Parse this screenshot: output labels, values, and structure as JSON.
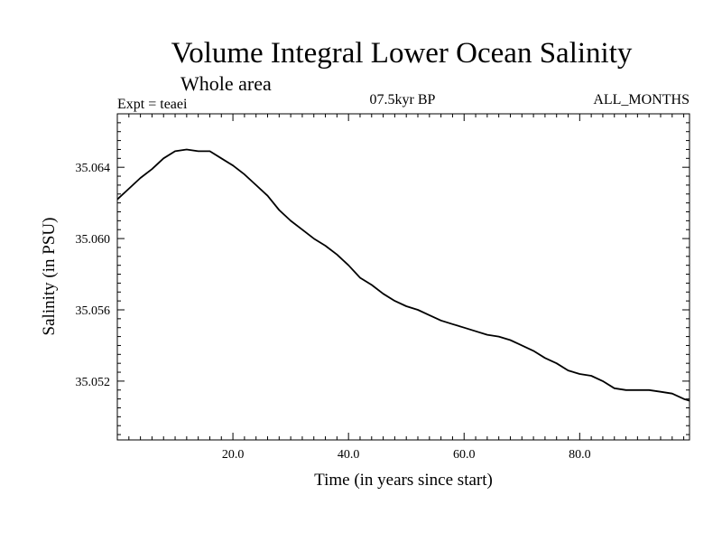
{
  "title": "Volume Integral Lower Ocean Salinity",
  "subtitle": "Whole area",
  "expt_label": "Expt = teaei",
  "period_label": "07.5kyr BP",
  "months_label": "ALL_MONTHS",
  "chart_data": {
    "type": "line",
    "title": "Volume Integral Lower Ocean Salinity",
    "xlabel": "Time (in years since start)",
    "ylabel": "Salinity (in PSU)",
    "xlim": [
      0,
      99
    ],
    "ylim": [
      35.0487,
      35.067
    ],
    "xticks": [
      20,
      40,
      60,
      80
    ],
    "xtick_labels": [
      "20.0",
      "40.0",
      "60.0",
      "80.0"
    ],
    "yticks": [
      35.052,
      35.056,
      35.06,
      35.064
    ],
    "ytick_labels": [
      "35.052",
      "35.056",
      "35.060",
      "35.064"
    ],
    "series": [
      {
        "name": "Salinity",
        "x": [
          0,
          2,
          4,
          6,
          8,
          10,
          12,
          14,
          16,
          18,
          20,
          22,
          24,
          26,
          28,
          30,
          32,
          34,
          36,
          38,
          40,
          42,
          44,
          46,
          48,
          50,
          52,
          54,
          56,
          58,
          60,
          62,
          64,
          66,
          68,
          70,
          72,
          74,
          76,
          78,
          80,
          82,
          84,
          86,
          88,
          90,
          92,
          94,
          96,
          98,
          99
        ],
        "values": [
          35.0622,
          35.0628,
          35.0634,
          35.0639,
          35.0645,
          35.0649,
          35.065,
          35.0649,
          35.0649,
          35.0645,
          35.0641,
          35.0636,
          35.063,
          35.0624,
          35.0616,
          35.061,
          35.0605,
          35.06,
          35.0596,
          35.0591,
          35.0585,
          35.0578,
          35.0574,
          35.0569,
          35.0565,
          35.0562,
          35.056,
          35.0557,
          35.0554,
          35.0552,
          35.055,
          35.0548,
          35.0546,
          35.0545,
          35.0543,
          35.054,
          35.0537,
          35.0533,
          35.053,
          35.0526,
          35.0524,
          35.0523,
          35.052,
          35.0516,
          35.0515,
          35.0515,
          35.0515,
          35.0514,
          35.0513,
          35.051,
          35.0509
        ]
      }
    ]
  }
}
